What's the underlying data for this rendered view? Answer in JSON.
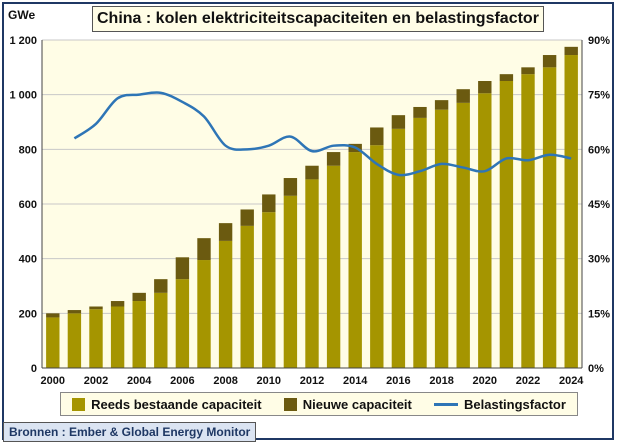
{
  "header": {
    "title": "China : kolen elektriciteitscapaciteiten en belastingsfactor",
    "unit_label": "GWe"
  },
  "legend": {
    "existing": "Reeds bestaande capaciteit",
    "new": "Nieuwe capaciteit",
    "load_factor": "Belastingsfactor"
  },
  "source": "Bronnen : Ember & Global Energy Monitor",
  "colors": {
    "existing": "#a59500",
    "new": "#6b5a10",
    "load_factor": "#2e75b6",
    "plot_bg": "#fffde6",
    "frame": "#1f3864"
  },
  "chart_data": {
    "type": "bar",
    "stacked": true,
    "categories": [
      "2000",
      "2001",
      "2002",
      "2003",
      "2004",
      "2005",
      "2006",
      "2007",
      "2008",
      "2009",
      "2010",
      "2011",
      "2012",
      "2013",
      "2014",
      "2015",
      "2016",
      "2017",
      "2018",
      "2019",
      "2020",
      "2021",
      "2022",
      "2023",
      "2024"
    ],
    "series": [
      {
        "name": "Reeds bestaande capaciteit",
        "values": [
          185,
          200,
          215,
          225,
          245,
          275,
          325,
          395,
          465,
          520,
          570,
          630,
          690,
          740,
          790,
          815,
          875,
          915,
          945,
          970,
          1005,
          1050,
          1075,
          1100,
          1145
        ]
      },
      {
        "name": "Nieuwe capaciteit",
        "values": [
          15,
          12,
          10,
          20,
          30,
          50,
          80,
          80,
          65,
          60,
          65,
          65,
          50,
          50,
          30,
          65,
          50,
          40,
          35,
          50,
          45,
          25,
          25,
          45,
          30
        ]
      }
    ],
    "line_series": {
      "name": "Belastingsfactor",
      "axis": "right",
      "x": [
        2001,
        2002,
        2003,
        2004,
        2005,
        2006,
        2007,
        2008,
        2009,
        2010,
        2011,
        2012,
        2013,
        2014,
        2015,
        2016,
        2017,
        2018,
        2019,
        2020,
        2021,
        2022,
        2023,
        2024
      ],
      "values": [
        63,
        67,
        74,
        75,
        75.5,
        73,
        69,
        61,
        60,
        61,
        63.5,
        59.5,
        61,
        60.5,
        56,
        53,
        54,
        56,
        55,
        54,
        57.5,
        57,
        58.5,
        57.5
      ]
    },
    "ylim_left": [
      0,
      1200
    ],
    "yticks_left": [
      "0",
      "200",
      "400",
      "600",
      "800",
      "1 000",
      "1 200"
    ],
    "ylim_right": [
      0,
      90
    ],
    "yticks_right": [
      "0%",
      "15%",
      "30%",
      "45%",
      "60%",
      "75%",
      "90%"
    ],
    "xticks": [
      "2000",
      "2002",
      "2004",
      "2006",
      "2008",
      "2010",
      "2012",
      "2014",
      "2016",
      "2018",
      "2020",
      "2022",
      "2024"
    ],
    "grid": "horizontal",
    "legend_position": "bottom"
  }
}
